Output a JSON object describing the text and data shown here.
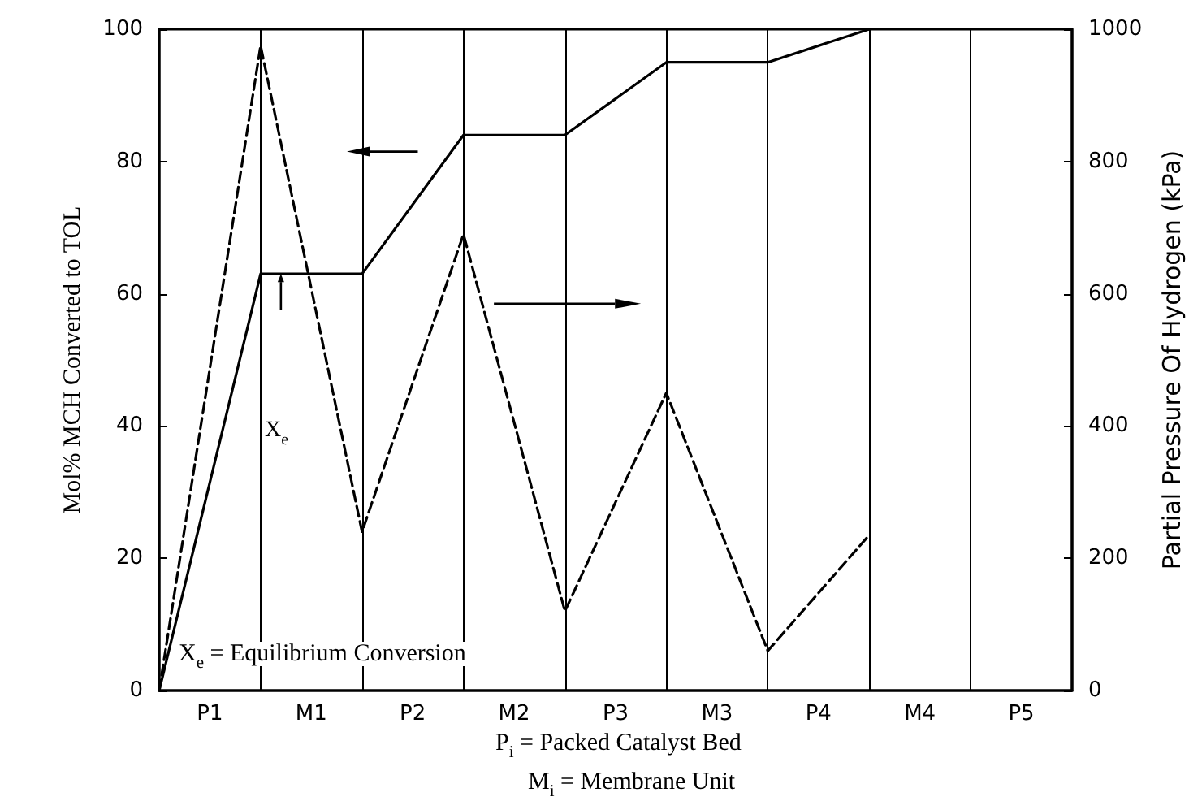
{
  "chart_data": {
    "type": "line",
    "categories": [
      null,
      "P1",
      null,
      "M1",
      null,
      "P2",
      null,
      "M2",
      null,
      "P3",
      null,
      "M3",
      null,
      "P4",
      null,
      "M4",
      null,
      "P5",
      null
    ],
    "ylabel": "Mol% MCH Converted to TOL",
    "y2label": "Partial Pressure Of Hydrogen (kPa)",
    "series": [
      {
        "values": [
          0,
          null,
          63,
          null,
          63,
          null,
          84,
          null,
          84,
          null,
          95,
          null,
          95,
          null,
          100,
          null,
          null,
          null,
          null
        ],
        "color": "#000000",
        "line_style": "solid"
      },
      {
        "values": [
          0,
          null,
          975,
          null,
          240,
          null,
          690,
          null,
          120,
          null,
          450,
          null,
          60,
          null,
          235,
          null,
          null,
          null,
          null
        ],
        "color": "#000000",
        "line_style": "dashed",
        "axis": "y2"
      }
    ],
    "ylim": [
      0,
      100
    ],
    "yticks": [
      0,
      20,
      40,
      60,
      80,
      100
    ],
    "y2lim": [
      0,
      1000
    ],
    "y2ticks": [
      0,
      200,
      400,
      600,
      800,
      1000
    ],
    "grid": "x",
    "marker": "none",
    "annotations": [
      "X$_{e}$",
      "X$_{e}$ = Equilibrium Conversion",
      "P$_{i}$ = Packed Catalyst Bed",
      "M$_{i}$ = Membrane Unit"
    ]
  }
}
